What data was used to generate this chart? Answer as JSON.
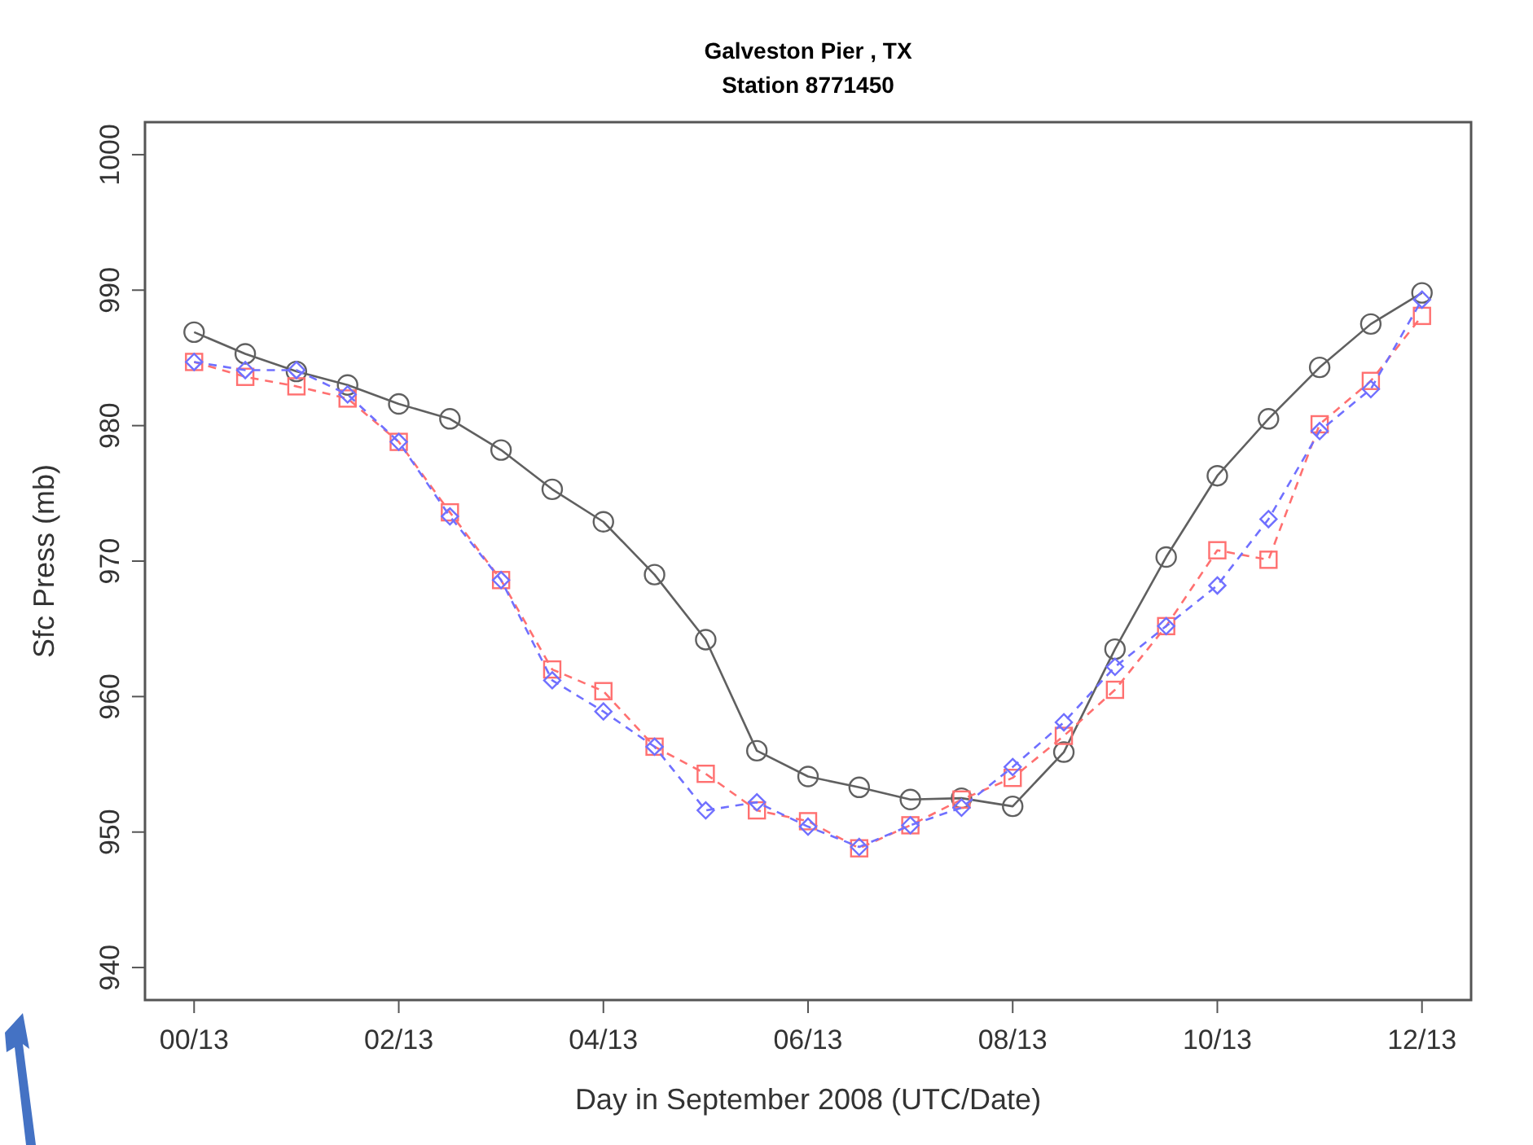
{
  "chart_data": {
    "type": "line",
    "title": "Galveston Pier , TX",
    "subtitle": "Station 8771450",
    "xlabel": "Day in September 2008 (UTC/Date)",
    "ylabel": "Sfc Press (mb)",
    "categories": [
      "00/13",
      null,
      null,
      null,
      "02/13",
      null,
      null,
      null,
      "04/13",
      null,
      null,
      null,
      "06/13",
      null,
      null,
      null,
      "08/13",
      null,
      null,
      null,
      "10/13",
      null,
      null,
      null,
      "12/13"
    ],
    "ylim": [
      937.6,
      1002.4
    ],
    "yticks": [
      940,
      950,
      960,
      970,
      980,
      990,
      1000
    ],
    "grid": false,
    "series": [
      {
        "color": "#606060",
        "marker": "circle",
        "line_style": "solid",
        "values": [
          986.9,
          985.3,
          984.0,
          983.0,
          981.6,
          980.5,
          978.2,
          975.3,
          972.9,
          969.0,
          964.2,
          956.0,
          954.1,
          953.3,
          952.4,
          952.5,
          951.9,
          955.9,
          963.5,
          970.3,
          976.3,
          980.5,
          984.3,
          987.5,
          989.8
        ]
      },
      {
        "color": "#ff7070",
        "marker": "square",
        "line_style": "dashed",
        "values": [
          984.7,
          983.6,
          982.9,
          982.0,
          978.8,
          973.6,
          968.6,
          962.0,
          960.4,
          956.3,
          954.3,
          951.6,
          950.8,
          948.8,
          950.5,
          952.4,
          954.0,
          957.1,
          960.5,
          965.2,
          970.8,
          970.1,
          980.1,
          983.3,
          988.1
        ]
      },
      {
        "color": "#7070ff",
        "marker": "diamond",
        "line_style": "dashed",
        "values": [
          984.7,
          984.1,
          984.1,
          982.3,
          978.8,
          973.3,
          968.6,
          961.2,
          958.9,
          956.3,
          951.6,
          952.2,
          950.4,
          948.9,
          950.5,
          951.8,
          954.8,
          958.1,
          962.2,
          965.2,
          968.2,
          973.1,
          979.6,
          982.7,
          989.3
        ]
      }
    ]
  }
}
